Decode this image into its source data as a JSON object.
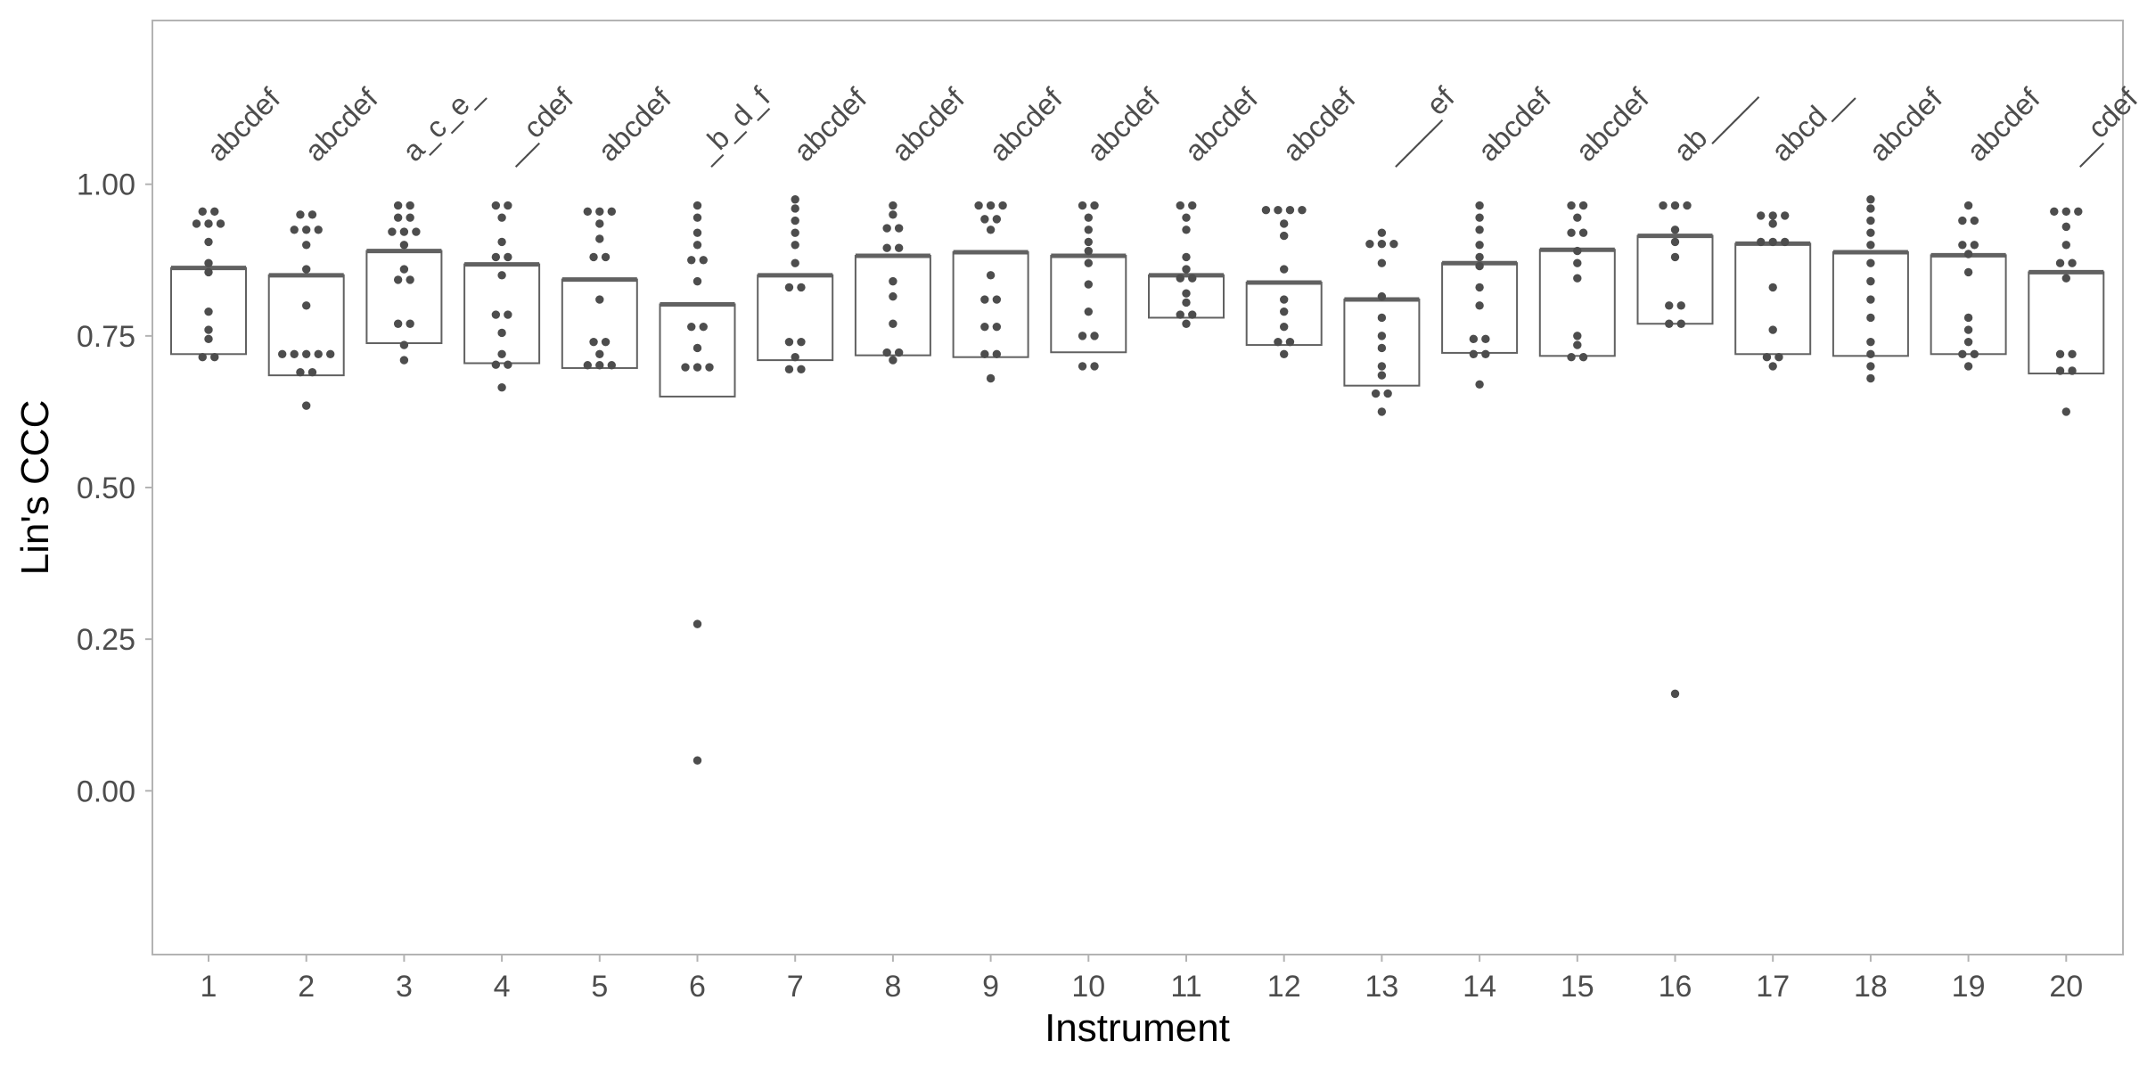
{
  "chart_data": {
    "type": "crossbar-dotplot",
    "xlabel": "Instrument",
    "ylabel": "Lin's CCC",
    "ylim": [
      -0.27,
      1.27
    ],
    "yticks": [
      0.0,
      0.25,
      0.5,
      0.75,
      1.0
    ],
    "ytick_labels": [
      "0.00",
      "0.25",
      "0.50",
      "0.75",
      "1.00"
    ],
    "categories": [
      "1",
      "2",
      "3",
      "4",
      "5",
      "6",
      "7",
      "8",
      "9",
      "10",
      "11",
      "12",
      "13",
      "14",
      "15",
      "16",
      "17",
      "18",
      "19",
      "20"
    ],
    "group_letters": [
      "abcdef",
      "abcdef",
      "a_c_e_",
      "__cdef",
      "abcdef",
      "_b_d_f",
      "abcdef",
      "abcdef",
      "abcdef",
      "abcdef",
      "abcdef",
      "abcdef",
      "____ef",
      "abcdef",
      "abcdef",
      "ab____",
      "abcd__",
      "abcdef",
      "abcdef",
      "__cdef"
    ],
    "grid": false,
    "colors": {
      "mark": "#4d4d4d",
      "box": "#616161",
      "panel_border": "#b3b3b3",
      "axis_text": "#4d4d4d",
      "title_text": "#000000"
    },
    "boxes": [
      {
        "lower": 0.72,
        "middle": 0.862,
        "upper": 0.862
      },
      {
        "lower": 0.685,
        "middle": 0.85,
        "upper": 0.85
      },
      {
        "lower": 0.738,
        "middle": 0.89,
        "upper": 0.89
      },
      {
        "lower": 0.705,
        "middle": 0.868,
        "upper": 0.868
      },
      {
        "lower": 0.697,
        "middle": 0.843,
        "upper": 0.843
      },
      {
        "lower": 0.65,
        "middle": 0.802,
        "upper": 0.802
      },
      {
        "lower": 0.71,
        "middle": 0.85,
        "upper": 0.85
      },
      {
        "lower": 0.718,
        "middle": 0.882,
        "upper": 0.882
      },
      {
        "lower": 0.715,
        "middle": 0.888,
        "upper": 0.888
      },
      {
        "lower": 0.723,
        "middle": 0.882,
        "upper": 0.882
      },
      {
        "lower": 0.78,
        "middle": 0.85,
        "upper": 0.85
      },
      {
        "lower": 0.735,
        "middle": 0.838,
        "upper": 0.838
      },
      {
        "lower": 0.668,
        "middle": 0.81,
        "upper": 0.81
      },
      {
        "lower": 0.722,
        "middle": 0.87,
        "upper": 0.87
      },
      {
        "lower": 0.717,
        "middle": 0.892,
        "upper": 0.892
      },
      {
        "lower": 0.77,
        "middle": 0.915,
        "upper": 0.915
      },
      {
        "lower": 0.72,
        "middle": 0.902,
        "upper": 0.902
      },
      {
        "lower": 0.717,
        "middle": 0.888,
        "upper": 0.888
      },
      {
        "lower": 0.72,
        "middle": 0.883,
        "upper": 0.883
      },
      {
        "lower": 0.688,
        "middle": 0.855,
        "upper": 0.855
      }
    ],
    "points": [
      [
        0.955,
        0.955,
        0.935,
        0.935,
        0.935,
        0.905,
        0.87,
        0.855,
        0.79,
        0.76,
        0.745,
        0.72,
        0.71
      ],
      [
        0.955,
        0.945,
        0.925,
        0.925,
        0.925,
        0.9,
        0.86,
        0.8,
        0.72,
        0.72,
        0.72,
        0.72,
        0.72,
        0.69,
        0.69,
        0.635
      ],
      [
        0.965,
        0.965,
        0.945,
        0.945,
        0.925,
        0.92,
        0.92,
        0.9,
        0.86,
        0.845,
        0.84,
        0.77,
        0.77,
        0.735,
        0.71
      ],
      [
        0.965,
        0.965,
        0.945,
        0.905,
        0.885,
        0.875,
        0.85,
        0.79,
        0.78,
        0.755,
        0.72,
        0.705,
        0.7,
        0.665
      ],
      [
        0.955,
        0.955,
        0.955,
        0.935,
        0.91,
        0.885,
        0.875,
        0.81,
        0.74,
        0.74,
        0.72,
        0.705,
        0.705,
        0.695
      ],
      [
        0.965,
        0.945,
        0.92,
        0.9,
        0.88,
        0.87,
        0.84,
        0.77,
        0.76,
        0.73,
        0.7,
        0.7,
        0.695,
        0.275,
        0.05
      ],
      [
        0.975,
        0.96,
        0.94,
        0.92,
        0.9,
        0.87,
        0.83,
        0.83,
        0.745,
        0.735,
        0.715,
        0.7,
        0.69
      ],
      [
        0.965,
        0.95,
        0.93,
        0.925,
        0.9,
        0.89,
        0.84,
        0.815,
        0.77,
        0.725,
        0.72,
        0.71
      ],
      [
        0.965,
        0.965,
        0.965,
        0.945,
        0.94,
        0.925,
        0.85,
        0.81,
        0.81,
        0.77,
        0.76,
        0.72,
        0.72,
        0.68
      ],
      [
        0.965,
        0.965,
        0.945,
        0.925,
        0.905,
        0.89,
        0.87,
        0.835,
        0.79,
        0.75,
        0.75,
        0.7,
        0.7
      ],
      [
        0.965,
        0.965,
        0.945,
        0.925,
        0.88,
        0.86,
        0.845,
        0.845,
        0.82,
        0.805,
        0.79,
        0.78,
        0.77
      ],
      [
        0.965,
        0.955,
        0.955,
        0.955,
        0.935,
        0.915,
        0.86,
        0.81,
        0.79,
        0.765,
        0.745,
        0.735,
        0.72
      ],
      [
        0.92,
        0.905,
        0.905,
        0.895,
        0.87,
        0.815,
        0.78,
        0.75,
        0.73,
        0.7,
        0.685,
        0.66,
        0.65,
        0.625
      ],
      [
        0.965,
        0.945,
        0.925,
        0.9,
        0.88,
        0.865,
        0.83,
        0.8,
        0.75,
        0.74,
        0.72,
        0.72,
        0.67
      ],
      [
        0.965,
        0.965,
        0.945,
        0.92,
        0.92,
        0.89,
        0.87,
        0.845,
        0.75,
        0.735,
        0.72,
        0.71
      ],
      [
        0.965,
        0.965,
        0.965,
        0.925,
        0.905,
        0.88,
        0.8,
        0.8,
        0.77,
        0.77,
        0.16
      ],
      [
        0.955,
        0.945,
        0.945,
        0.935,
        0.905,
        0.905,
        0.905,
        0.83,
        0.76,
        0.72,
        0.71,
        0.7
      ],
      [
        0.975,
        0.96,
        0.94,
        0.92,
        0.9,
        0.87,
        0.84,
        0.81,
        0.78,
        0.74,
        0.72,
        0.7,
        0.68
      ],
      [
        0.965,
        0.945,
        0.935,
        0.9,
        0.9,
        0.885,
        0.855,
        0.78,
        0.76,
        0.74,
        0.72,
        0.72,
        0.7
      ],
      [
        0.955,
        0.955,
        0.955,
        0.93,
        0.9,
        0.875,
        0.865,
        0.845,
        0.72,
        0.72,
        0.695,
        0.69,
        0.625
      ]
    ]
  }
}
